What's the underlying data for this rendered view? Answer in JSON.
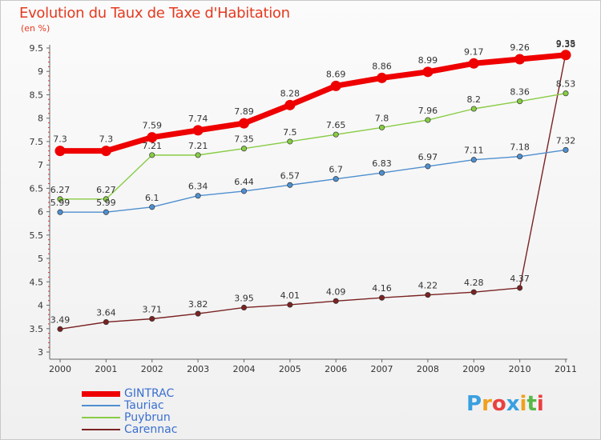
{
  "header": {
    "title": "Evolution du Taux de Taxe d'Habitation",
    "unit": "(en %)"
  },
  "brand": {
    "name": "Proxiti"
  },
  "chart_data": {
    "type": "line",
    "title": "Evolution du Taux de Taxe d'Habitation",
    "ylabel": "(en %)",
    "xlabel": "",
    "x": [
      "2000",
      "2001",
      "2002",
      "2003",
      "2004",
      "2005",
      "2006",
      "2007",
      "2008",
      "2009",
      "2010",
      "2011"
    ],
    "yticks": [
      "3",
      "3.5",
      "4",
      "4.5",
      "5",
      "5.5",
      "6",
      "6.5",
      "7",
      "7.5",
      "8",
      "8.5",
      "9",
      "9.5"
    ],
    "ylim": [
      3,
      9.5
    ],
    "grid": false,
    "legend_position": "bottom-left",
    "series": [
      {
        "name": "GINTRAC",
        "color": "#ee0000",
        "values": [
          7.3,
          7.3,
          7.59,
          7.74,
          7.89,
          8.28,
          8.69,
          8.86,
          8.99,
          9.17,
          9.26,
          9.35
        ],
        "labels": [
          "7.3",
          "7.3",
          "7.59",
          "7.74",
          "7.89",
          "8.28",
          "8.69",
          "8.86",
          "8.99",
          "9.17",
          "9.26",
          "9.35"
        ]
      },
      {
        "name": "Tauriac",
        "color": "#4f8fcf",
        "values": [
          5.99,
          5.99,
          6.1,
          6.34,
          6.44,
          6.57,
          6.7,
          6.83,
          6.97,
          7.11,
          7.18,
          7.32
        ],
        "labels": [
          "5.99",
          "5.99",
          "6.1",
          "6.34",
          "6.44",
          "6.57",
          "6.7",
          "6.83",
          "6.97",
          "7.11",
          "7.18",
          "7.32"
        ]
      },
      {
        "name": "Puybrun",
        "color": "#88cc44",
        "values": [
          6.27,
          6.27,
          7.21,
          7.21,
          7.35,
          7.5,
          7.65,
          7.8,
          7.96,
          8.2,
          8.36,
          8.53
        ],
        "labels": [
          "6.27",
          "6.27",
          "7.21",
          "7.21",
          "7.35",
          "7.5",
          "7.65",
          "7.8",
          "7.96",
          "8.2",
          "8.36",
          "8.53"
        ]
      },
      {
        "name": "Carennac",
        "color": "#7a2222",
        "values": [
          3.49,
          3.64,
          3.71,
          3.82,
          3.95,
          4.01,
          4.09,
          4.16,
          4.22,
          4.28,
          4.37,
          9.38
        ],
        "labels": [
          "3.49",
          "3.64",
          "3.71",
          "3.82",
          "3.95",
          "4.01",
          "4.09",
          "4.16",
          "4.22",
          "4.28",
          "4.37",
          "9.38"
        ]
      }
    ]
  }
}
